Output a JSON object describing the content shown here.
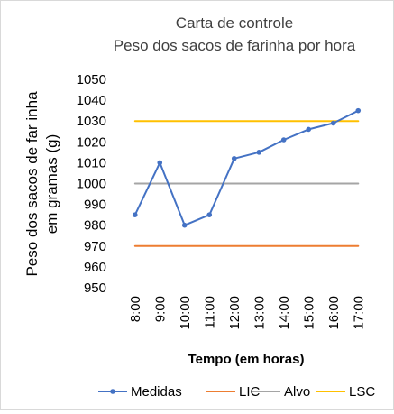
{
  "chart_data": {
    "type": "line",
    "title": "Carta de controle",
    "subtitle": "Peso dos sacos de farinha por hora",
    "ylabel_line1": "Peso dos sacos de far inha",
    "ylabel_line2": "em gramas (g)",
    "xlabel": "Tempo (em horas)",
    "categories": [
      "8:00",
      "9:00",
      "10:00",
      "11:00",
      "12:00",
      "13:00",
      "14:00",
      "15:00",
      "16:00",
      "17:00"
    ],
    "ylim": [
      950,
      1050
    ],
    "yticks": [
      950,
      960,
      970,
      980,
      990,
      1000,
      1010,
      1020,
      1030,
      1040,
      1050
    ],
    "grid": false,
    "legend_position": "bottom",
    "series": [
      {
        "name": "Medidas",
        "color": "#4472c4",
        "markers": true,
        "values": [
          985,
          1010,
          980,
          985,
          1012,
          1015,
          1021,
          1026,
          1029,
          1035
        ]
      },
      {
        "name": "LIC",
        "color": "#ed7d31",
        "markers": false,
        "values": [
          970,
          970,
          970,
          970,
          970,
          970,
          970,
          970,
          970,
          970
        ]
      },
      {
        "name": "Alvo",
        "color": "#a5a5a5",
        "markers": false,
        "values": [
          1000,
          1000,
          1000,
          1000,
          1000,
          1000,
          1000,
          1000,
          1000,
          1000
        ]
      },
      {
        "name": "LSC",
        "color": "#ffc000",
        "markers": false,
        "values": [
          1030,
          1030,
          1030,
          1030,
          1030,
          1030,
          1030,
          1030,
          1030,
          1030
        ]
      }
    ]
  }
}
